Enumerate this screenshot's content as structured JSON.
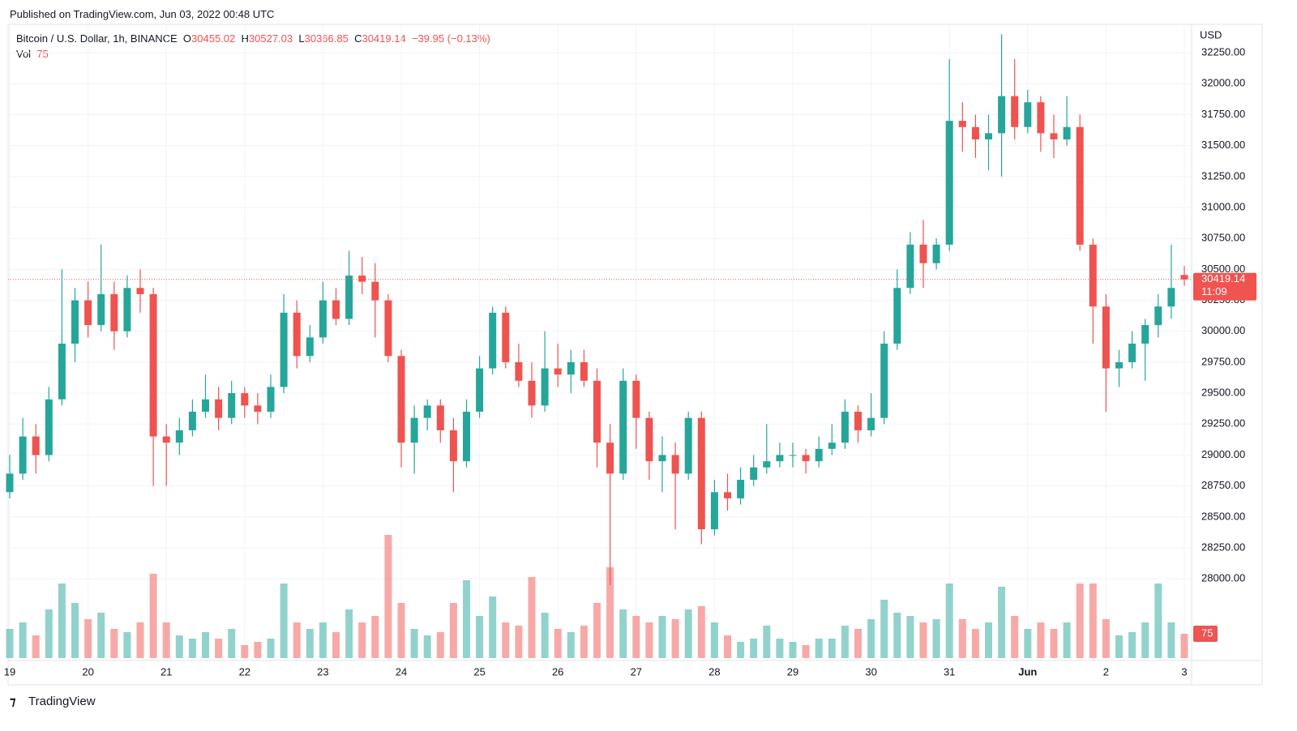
{
  "published": "Published on TradingView.com, Jun 03, 2022 00:48 UTC",
  "brand": "TradingView",
  "chart_data": {
    "type": "candlestick",
    "symbol": "Bitcoin / U.S. Dollar, 1h, BINANCE",
    "ohlc_letters": [
      "O",
      "H",
      "L",
      "C"
    ],
    "change": "−39.95 (−0.13%)",
    "volume_label": "Vol",
    "currency": "USD",
    "countdown": "11:09",
    "up_color": "#26a69a",
    "down_color": "#ef5350",
    "last_price_color": "#f05350",
    "grid": true,
    "categories": [
      "19",
      null,
      null,
      null,
      null,
      null,
      "20",
      null,
      null,
      null,
      null,
      null,
      "21",
      null,
      null,
      null,
      null,
      null,
      "22",
      null,
      null,
      null,
      null,
      null,
      "23",
      null,
      null,
      null,
      null,
      null,
      "24",
      null,
      null,
      null,
      null,
      null,
      "25",
      null,
      null,
      null,
      null,
      null,
      "26",
      null,
      null,
      null,
      null,
      null,
      "27",
      null,
      null,
      null,
      null,
      null,
      "28",
      null,
      null,
      null,
      null,
      null,
      "29",
      null,
      null,
      null,
      null,
      null,
      "30",
      null,
      null,
      null,
      null,
      null,
      "31",
      null,
      null,
      null,
      null,
      null,
      "Jun",
      null,
      null,
      null,
      null,
      null,
      "2",
      null,
      null,
      null,
      null,
      null,
      "3"
    ],
    "open": [
      28700,
      28850,
      29150,
      29000,
      29450,
      29900,
      30250,
      30050,
      30300,
      30000,
      30350,
      30300,
      29150,
      29100,
      29200,
      29350,
      29450,
      29300,
      29500,
      29400,
      29350,
      29550,
      30150,
      29800,
      29950,
      30250,
      30100,
      30450,
      30400,
      30250,
      29800,
      29100,
      29300,
      29400,
      29200,
      28950,
      29350,
      29700,
      30150,
      29750,
      29600,
      29400,
      29700,
      29650,
      29750,
      29600,
      29100,
      28850,
      29600,
      29300,
      28950,
      29000,
      28850,
      29300,
      28400,
      28700,
      28650,
      28800,
      28900,
      28950,
      29000,
      29000,
      28950,
      29050,
      29100,
      29350,
      29200,
      29300,
      29900,
      30350,
      30700,
      30550,
      30700,
      31700,
      31650,
      31550,
      31600,
      31900,
      31650,
      31850,
      31600,
      31550,
      31650,
      30700,
      30200,
      29700,
      29750,
      29900,
      30050,
      30200,
      30455.02
    ],
    "high": [
      29000,
      29300,
      29250,
      29550,
      30500,
      30350,
      30400,
      30700,
      30400,
      30450,
      30500,
      30350,
      29250,
      29300,
      29450,
      29650,
      29550,
      29600,
      29550,
      29500,
      29650,
      30300,
      30250,
      30050,
      30400,
      30350,
      30650,
      30600,
      30550,
      30300,
      29850,
      29400,
      29450,
      29450,
      29300,
      29450,
      29800,
      30200,
      30200,
      29900,
      29750,
      30000,
      29900,
      29850,
      29850,
      29700,
      29250,
      29700,
      29650,
      29350,
      29150,
      29100,
      29350,
      29350,
      28800,
      28850,
      28900,
      29000,
      29250,
      29100,
      29100,
      29050,
      29150,
      29250,
      29450,
      29400,
      29500,
      30000,
      30500,
      30800,
      30900,
      30750,
      32200,
      31850,
      31750,
      31750,
      32400,
      32200,
      31950,
      31900,
      31750,
      31900,
      31750,
      30750,
      30300,
      29850,
      30000,
      30100,
      30300,
      30700,
      30527.03
    ],
    "low": [
      28650,
      28800,
      28850,
      28950,
      29400,
      29750,
      29950,
      30000,
      29850,
      29950,
      30150,
      28750,
      28750,
      29000,
      29150,
      29300,
      29200,
      29250,
      29300,
      29250,
      29300,
      29500,
      29700,
      29750,
      29900,
      30050,
      30050,
      30300,
      29950,
      29750,
      28900,
      28850,
      29200,
      29100,
      28700,
      28900,
      29300,
      29650,
      29700,
      29550,
      29300,
      29350,
      29550,
      29500,
      29550,
      28900,
      27950,
      28800,
      29050,
      28800,
      28700,
      28400,
      28800,
      28280,
      28350,
      28550,
      28600,
      28750,
      28850,
      28900,
      28900,
      28850,
      28900,
      29000,
      29050,
      29100,
      29150,
      29250,
      29850,
      30300,
      30350,
      30500,
      30650,
      31450,
      31400,
      31300,
      31250,
      31550,
      31600,
      31450,
      31400,
      31500,
      30650,
      29900,
      29350,
      29550,
      29700,
      29600,
      29950,
      30100,
      30366.85
    ],
    "close": [
      28850,
      29150,
      29000,
      29450,
      29900,
      30250,
      30050,
      30300,
      30000,
      30350,
      30300,
      29150,
      29100,
      29200,
      29350,
      29450,
      29300,
      29500,
      29400,
      29350,
      29550,
      30150,
      29800,
      29950,
      30250,
      30100,
      30450,
      30400,
      30250,
      29800,
      29100,
      29300,
      29400,
      29200,
      28950,
      29350,
      29700,
      30150,
      29750,
      29600,
      29400,
      29700,
      29650,
      29750,
      29600,
      29100,
      28850,
      29600,
      29300,
      28950,
      29000,
      28850,
      29300,
      28400,
      28700,
      28650,
      28800,
      28900,
      28950,
      29000,
      29000,
      28950,
      29050,
      29100,
      29350,
      29200,
      29300,
      29900,
      30350,
      30700,
      30550,
      30700,
      31700,
      31650,
      31550,
      31600,
      31900,
      31650,
      31850,
      31600,
      31550,
      31650,
      30700,
      30200,
      29700,
      29750,
      29900,
      30050,
      30200,
      30350,
      30419.14
    ],
    "volume": [
      90,
      110,
      70,
      150,
      230,
      170,
      120,
      140,
      90,
      80,
      110,
      260,
      110,
      70,
      60,
      80,
      60,
      90,
      40,
      50,
      60,
      230,
      110,
      90,
      110,
      80,
      150,
      110,
      130,
      380,
      170,
      90,
      70,
      80,
      170,
      240,
      130,
      190,
      110,
      100,
      250,
      140,
      90,
      80,
      100,
      170,
      280,
      150,
      130,
      110,
      130,
      120,
      150,
      160,
      110,
      70,
      50,
      60,
      100,
      60,
      50,
      40,
      60,
      60,
      100,
      90,
      120,
      180,
      140,
      130,
      110,
      120,
      230,
      120,
      90,
      110,
      220,
      130,
      90,
      110,
      90,
      110,
      230,
      230,
      120,
      70,
      80,
      110,
      230,
      110,
      75
    ],
    "ylim": [
      27340,
      32480
    ],
    "yticks": [
      {
        "value": 28000,
        "label": "28000.00"
      },
      {
        "value": 28250,
        "label": "28250.00"
      },
      {
        "value": 28500,
        "label": "28500.00"
      },
      {
        "value": 28750,
        "label": "28750.00"
      },
      {
        "value": 29000,
        "label": "29000.00"
      },
      {
        "value": 29250,
        "label": "29250.00"
      },
      {
        "value": 29500,
        "label": "29500.00"
      },
      {
        "value": 29750,
        "label": "29750.00"
      },
      {
        "value": 30000,
        "label": "30000.00"
      },
      {
        "value": 30250,
        "label": "30250.00"
      },
      {
        "value": 30500,
        "label": "30500.00"
      },
      {
        "value": 30750,
        "label": "30750.00"
      },
      {
        "value": 31000,
        "label": "31000.00"
      },
      {
        "value": 31250,
        "label": "31250.00"
      },
      {
        "value": 31500,
        "label": "31500.00"
      },
      {
        "value": 31750,
        "label": "31750.00"
      },
      {
        "value": 32000,
        "label": "32000.00"
      },
      {
        "value": 32250,
        "label": "32250.00"
      }
    ],
    "volume_ylim": [
      0,
      450
    ]
  }
}
